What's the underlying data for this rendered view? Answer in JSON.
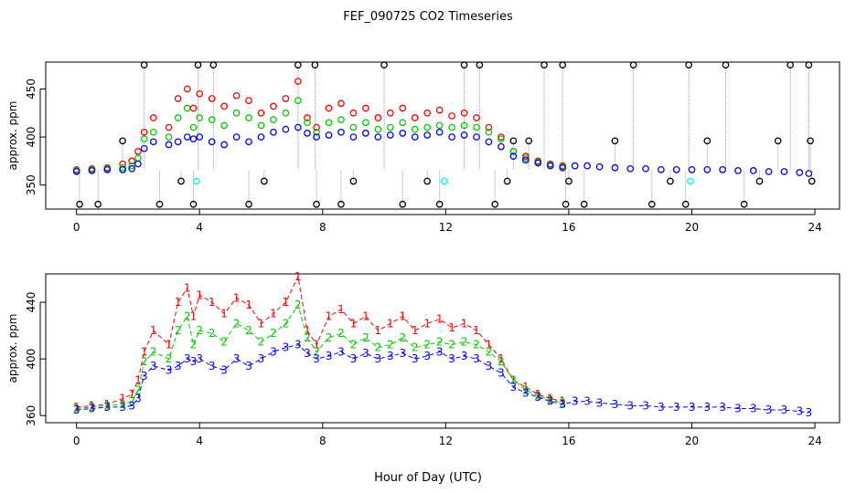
{
  "title": "FEF_090725  CO2 Timeseries",
  "xlabel": "Hour of Day (UTC)",
  "chart_data": [
    {
      "type": "scatter",
      "panel": "top",
      "ylabel": "approx. ppm",
      "xlim": [
        -1.0,
        24.8
      ],
      "ylim": [
        325,
        478
      ],
      "x_ticks": [
        0,
        4,
        8,
        12,
        16,
        20,
        24
      ],
      "y_ticks": [
        350,
        400,
        450
      ],
      "marker": "circle",
      "colors": {
        "red": "#ff0000",
        "green": "#00cc00",
        "blue": "#0000ff",
        "black": "#000000",
        "cyan": "#00ffff",
        "connector": "#999999"
      },
      "series": [
        {
          "color": "red",
          "x": [
            0,
            0.5,
            1,
            1.5,
            1.8,
            2.0,
            2.2,
            2.5,
            3.0,
            3.3,
            3.6,
            3.8,
            4.0,
            4.4,
            4.8,
            5.2,
            5.6,
            6.0,
            6.4,
            6.8,
            7.2,
            7.5,
            7.8,
            8.2,
            8.6,
            9.0,
            9.4,
            9.8,
            10.2,
            10.6,
            11.0,
            11.4,
            11.8,
            12.2,
            12.6,
            13.0,
            13.4,
            13.8,
            14.2,
            14.6,
            15.0,
            15.4,
            15.8
          ],
          "y": [
            366,
            367,
            368,
            372,
            375,
            385,
            405,
            420,
            410,
            440,
            450,
            430,
            445,
            440,
            432,
            443,
            438,
            425,
            432,
            440,
            458,
            420,
            410,
            430,
            435,
            425,
            430,
            420,
            425,
            430,
            420,
            425,
            428,
            422,
            425,
            420,
            410,
            400,
            385,
            380,
            375,
            372,
            370
          ]
        },
        {
          "color": "green",
          "x": [
            0,
            0.5,
            1,
            1.5,
            1.8,
            2.0,
            2.2,
            2.5,
            3.0,
            3.3,
            3.6,
            3.8,
            4.0,
            4.4,
            4.8,
            5.2,
            5.6,
            6.0,
            6.4,
            6.8,
            7.2,
            7.5,
            7.8,
            8.2,
            8.6,
            9.0,
            9.4,
            9.8,
            10.2,
            10.6,
            11.0,
            11.4,
            11.8,
            12.2,
            12.6,
            13.0,
            13.4,
            13.8,
            14.2,
            14.6,
            15.0,
            15.4,
            15.8
          ],
          "y": [
            365,
            366,
            367,
            368,
            370,
            378,
            398,
            405,
            400,
            420,
            430,
            410,
            420,
            418,
            412,
            425,
            420,
            412,
            418,
            425,
            438,
            415,
            405,
            415,
            418,
            410,
            415,
            408,
            410,
            415,
            408,
            410,
            412,
            410,
            412,
            410,
            405,
            398,
            385,
            378,
            374,
            371,
            369
          ]
        },
        {
          "color": "blue",
          "x": [
            0,
            0.5,
            1,
            1.5,
            1.8,
            2.0,
            2.2,
            2.5,
            3.0,
            3.3,
            3.6,
            3.8,
            4.0,
            4.4,
            4.8,
            5.2,
            5.6,
            6.0,
            6.4,
            6.8,
            7.2,
            7.5,
            7.8,
            8.2,
            8.6,
            9.0,
            9.4,
            9.8,
            10.2,
            10.6,
            11.0,
            11.4,
            11.8,
            12.2,
            12.6,
            13.0,
            13.4,
            13.8,
            14.2,
            14.6,
            15.0,
            15.4,
            15.8,
            16.2,
            16.6,
            17.0,
            17.5,
            18.0,
            18.5,
            19.0,
            19.5,
            20.0,
            20.5,
            21.0,
            21.5,
            22.0,
            22.5,
            23.0,
            23.5,
            23.8
          ],
          "y": [
            364,
            365,
            366,
            366,
            367,
            372,
            388,
            395,
            392,
            395,
            400,
            398,
            400,
            395,
            392,
            400,
            395,
            400,
            405,
            408,
            410,
            404,
            400,
            402,
            405,
            400,
            404,
            400,
            402,
            404,
            400,
            402,
            405,
            400,
            402,
            400,
            395,
            390,
            380,
            376,
            373,
            370,
            368,
            370,
            370,
            369,
            368,
            367,
            367,
            366,
            366,
            366,
            366,
            366,
            365,
            365,
            364,
            364,
            363,
            362
          ]
        },
        {
          "color": "black",
          "x": [
            0.1,
            0.7,
            1.5,
            2.2,
            2.7,
            3.4,
            3.8,
            3.95,
            4.45,
            5.6,
            6.1,
            7.2,
            7.75,
            7.8,
            8.6,
            9.0,
            10.0,
            10.6,
            11.4,
            11.8,
            12.6,
            13.1,
            13.6,
            14.0,
            14.2,
            14.7,
            15.2,
            15.8,
            15.9,
            16.0,
            16.5,
            17.5,
            18.1,
            18.7,
            19.3,
            19.8,
            19.9,
            20.5,
            21.1,
            21.7,
            22.2,
            22.8,
            23.2,
            23.8,
            23.85,
            23.9
          ],
          "y": [
            330,
            330,
            396,
            475,
            330,
            354,
            330,
            475,
            475,
            330,
            354,
            475,
            475,
            330,
            330,
            354,
            475,
            330,
            354,
            330,
            475,
            475,
            330,
            354,
            396,
            396,
            475,
            475,
            330,
            354,
            330,
            396,
            475,
            330,
            354,
            330,
            475,
            396,
            475,
            330,
            354,
            396,
            475,
            475,
            396,
            354
          ]
        },
        {
          "color": "cyan",
          "x": [
            3.9,
            11.95,
            19.95
          ],
          "y": [
            354,
            354,
            354
          ]
        }
      ]
    },
    {
      "type": "scatter",
      "panel": "bottom",
      "ylabel": "approx. ppm",
      "xlim": [
        -1.0,
        24.8
      ],
      "ylim": [
        355,
        460
      ],
      "x_ticks": [
        0,
        4,
        8,
        12,
        16,
        20,
        24
      ],
      "y_ticks": [
        360,
        400,
        440
      ],
      "marker": "digit",
      "colors": {
        "red": "#ff0000",
        "green": "#00cc00",
        "blue": "#0000ff",
        "cyan": "#00ffff"
      },
      "series": [
        {
          "label": "1",
          "color": "red",
          "x": [
            0,
            0.5,
            1,
            1.5,
            1.8,
            2.0,
            2.2,
            2.5,
            3.0,
            3.3,
            3.6,
            3.8,
            4.0,
            4.4,
            4.8,
            5.2,
            5.6,
            6.0,
            6.4,
            6.8,
            7.2,
            7.5,
            7.8,
            8.2,
            8.6,
            9.0,
            9.4,
            9.8,
            10.2,
            10.6,
            11.0,
            11.4,
            11.8,
            12.2,
            12.6,
            13.0,
            13.4,
            13.8,
            14.2,
            14.6,
            15.0,
            15.4,
            15.8
          ],
          "y": [
            366,
            367,
            368,
            372,
            375,
            385,
            405,
            420,
            410,
            440,
            450,
            430,
            445,
            440,
            432,
            443,
            438,
            425,
            432,
            440,
            458,
            420,
            410,
            430,
            435,
            425,
            430,
            420,
            425,
            430,
            420,
            425,
            428,
            422,
            425,
            420,
            410,
            400,
            385,
            380,
            375,
            372,
            370
          ]
        },
        {
          "label": "2",
          "color": "green",
          "x": [
            0,
            0.5,
            1,
            1.5,
            1.8,
            2.0,
            2.2,
            2.5,
            3.0,
            3.3,
            3.6,
            3.8,
            4.0,
            4.4,
            4.8,
            5.2,
            5.6,
            6.0,
            6.4,
            6.8,
            7.2,
            7.5,
            7.8,
            8.2,
            8.6,
            9.0,
            9.4,
            9.8,
            10.2,
            10.6,
            11.0,
            11.4,
            11.8,
            12.2,
            12.6,
            13.0,
            13.4,
            13.8,
            14.2,
            14.6,
            15.0,
            15.4,
            15.8
          ],
          "y": [
            365,
            366,
            367,
            368,
            370,
            378,
            398,
            405,
            400,
            420,
            430,
            410,
            420,
            418,
            412,
            425,
            420,
            412,
            418,
            425,
            438,
            415,
            405,
            415,
            418,
            410,
            415,
            408,
            410,
            415,
            408,
            410,
            412,
            410,
            412,
            410,
            405,
            398,
            385,
            378,
            374,
            371,
            369
          ]
        },
        {
          "label": "3",
          "color": "blue",
          "x": [
            0,
            0.5,
            1,
            1.5,
            1.8,
            2.0,
            2.2,
            2.5,
            3.0,
            3.3,
            3.6,
            3.8,
            4.0,
            4.4,
            4.8,
            5.2,
            5.6,
            6.0,
            6.4,
            6.8,
            7.2,
            7.5,
            7.8,
            8.2,
            8.6,
            9.0,
            9.4,
            9.8,
            10.2,
            10.6,
            11.0,
            11.4,
            11.8,
            12.2,
            12.6,
            13.0,
            13.4,
            13.8,
            14.2,
            14.6,
            15.0,
            15.4,
            15.8,
            16.2,
            16.6,
            17.0,
            17.5,
            18.0,
            18.5,
            19.0,
            19.5,
            20.0,
            20.5,
            21.0,
            21.5,
            22.0,
            22.5,
            23.0,
            23.5,
            23.8
          ],
          "y": [
            364,
            365,
            366,
            366,
            367,
            372,
            388,
            395,
            392,
            395,
            400,
            398,
            400,
            395,
            392,
            400,
            395,
            400,
            405,
            408,
            410,
            404,
            400,
            402,
            405,
            400,
            404,
            400,
            402,
            404,
            400,
            402,
            405,
            400,
            402,
            400,
            395,
            390,
            380,
            376,
            373,
            370,
            368,
            370,
            370,
            369,
            368,
            367,
            367,
            366,
            366,
            366,
            366,
            366,
            365,
            365,
            364,
            364,
            363,
            362
          ]
        }
      ]
    }
  ]
}
